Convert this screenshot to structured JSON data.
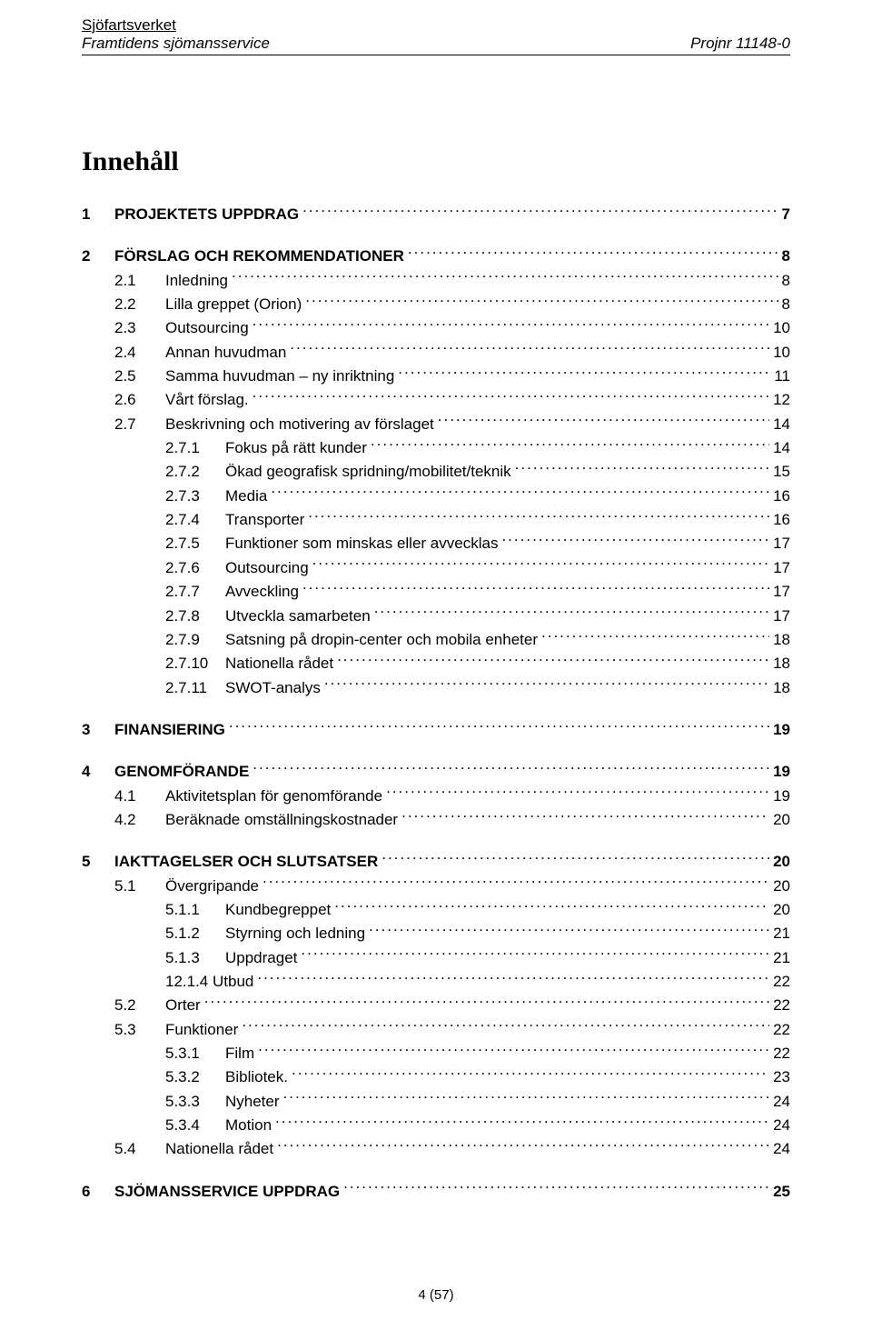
{
  "header": {
    "org": "Sjöfartsverket",
    "subtitle": "Framtidens sjömansservice",
    "projref": "Projnr 11148-0"
  },
  "title": "Innehåll",
  "toc": [
    {
      "lvl": 1,
      "num": "1",
      "label": "PROJEKTETS UPPDRAG",
      "pg": "7"
    },
    {
      "lvl": 1,
      "num": "2",
      "label": "FÖRSLAG OCH REKOMMENDATIONER",
      "pg": "8"
    },
    {
      "lvl": 2,
      "num": "2.1",
      "label": "Inledning",
      "pg": "8"
    },
    {
      "lvl": 2,
      "num": "2.2",
      "label": "Lilla greppet (Orion)",
      "pg": "8"
    },
    {
      "lvl": 2,
      "num": "2.3",
      "label": "Outsourcing",
      "pg": "10"
    },
    {
      "lvl": 2,
      "num": "2.4",
      "label": "Annan huvudman",
      "pg": "10"
    },
    {
      "lvl": 2,
      "num": "2.5",
      "label": "Samma huvudman – ny inriktning",
      "pg": "11"
    },
    {
      "lvl": 2,
      "num": "2.6",
      "label": "Vårt förslag.",
      "pg": "12"
    },
    {
      "lvl": 2,
      "num": "2.7",
      "label": "Beskrivning och motivering av förslaget",
      "pg": "14"
    },
    {
      "lvl": 3,
      "num": "2.7.1",
      "label": "Fokus på rätt kunder",
      "pg": "14"
    },
    {
      "lvl": 3,
      "num": "2.7.2",
      "label": "Ökad geografisk spridning/mobilitet/teknik",
      "pg": "15"
    },
    {
      "lvl": 3,
      "num": "2.7.3",
      "label": "Media",
      "pg": "16"
    },
    {
      "lvl": 3,
      "num": "2.7.4",
      "label": "Transporter",
      "pg": "16"
    },
    {
      "lvl": 3,
      "num": "2.7.5",
      "label": "Funktioner som minskas eller avvecklas",
      "pg": "17"
    },
    {
      "lvl": 3,
      "num": "2.7.6",
      "label": "Outsourcing",
      "pg": "17"
    },
    {
      "lvl": 3,
      "num": "2.7.7",
      "label": "Avveckling",
      "pg": "17"
    },
    {
      "lvl": 3,
      "num": "2.7.8",
      "label": "Utveckla samarbeten",
      "pg": "17"
    },
    {
      "lvl": 3,
      "num": "2.7.9",
      "label": "Satsning på dropin-center och mobila enheter",
      "pg": "18"
    },
    {
      "lvl": 3,
      "num": "2.7.10",
      "label": "Nationella rådet",
      "pg": "18"
    },
    {
      "lvl": 3,
      "num": "2.7.11",
      "label": "SWOT-analys",
      "pg": "18"
    },
    {
      "lvl": 1,
      "num": "3",
      "label": "FINANSIERING",
      "pg": "19"
    },
    {
      "lvl": 1,
      "num": "4",
      "label": "GENOMFÖRANDE",
      "pg": "19"
    },
    {
      "lvl": 2,
      "num": "4.1",
      "label": "Aktivitetsplan för genomförande",
      "pg": "19"
    },
    {
      "lvl": 2,
      "num": "4.2",
      "label": "Beräknade omställningskostnader",
      "pg": "20"
    },
    {
      "lvl": 1,
      "num": "5",
      "label": "IAKTTAGELSER OCH SLUTSATSER",
      "pg": "20"
    },
    {
      "lvl": 2,
      "num": "5.1",
      "label": "Övergripande",
      "pg": "20"
    },
    {
      "lvl": 3,
      "num": "5.1.1",
      "label": "Kundbegreppet",
      "pg": "20"
    },
    {
      "lvl": 3,
      "num": "5.1.2",
      "label": "Styrning och ledning",
      "pg": "21"
    },
    {
      "lvl": 3,
      "num": "5.1.3",
      "label": "Uppdraget",
      "pg": "21"
    },
    {
      "lvl": 3,
      "num": "12.1.4 Utbud",
      "label": "",
      "pg": "22",
      "merged": true
    },
    {
      "lvl": 2,
      "num": "5.2",
      "label": "Orter",
      "pg": "22"
    },
    {
      "lvl": 2,
      "num": "5.3",
      "label": "Funktioner",
      "pg": "22"
    },
    {
      "lvl": 3,
      "num": "5.3.1",
      "label": "Film",
      "pg": "22"
    },
    {
      "lvl": 3,
      "num": "5.3.2",
      "label": "Bibliotek.",
      "pg": "23"
    },
    {
      "lvl": 3,
      "num": "5.3.3",
      "label": "Nyheter",
      "pg": "24"
    },
    {
      "lvl": 3,
      "num": "5.3.4",
      "label": "Motion",
      "pg": "24"
    },
    {
      "lvl": 2,
      "num": "5.4",
      "label": "Nationella rådet",
      "pg": "24"
    },
    {
      "lvl": 1,
      "num": "6",
      "label": "SJÖMANSSERVICE UPPDRAG",
      "pg": "25"
    }
  ],
  "footer": "4 (57)"
}
